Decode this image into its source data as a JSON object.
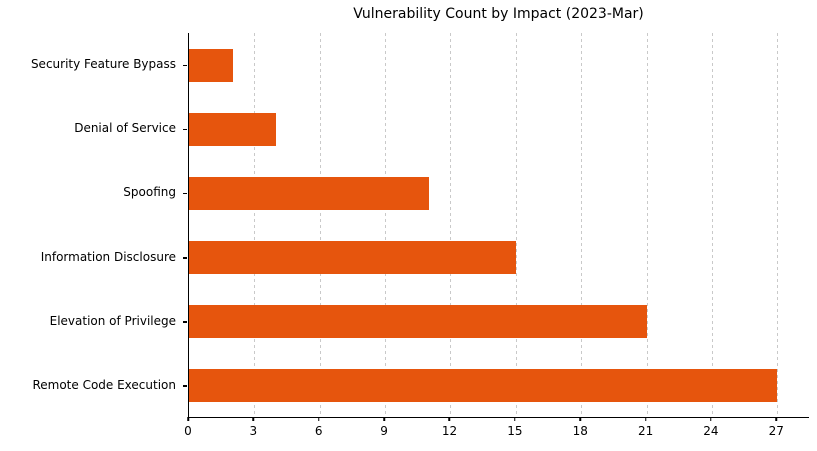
{
  "colors": {
    "background": "#ffffff",
    "bar": "#e6550d",
    "axis": "#000000",
    "grid": "#c9c9c9",
    "text": "#000000"
  },
  "chart_data": {
    "type": "bar",
    "orientation": "horizontal",
    "title": "Vulnerability Count by Impact (2023-Mar)",
    "categories": [
      "Security Feature Bypass",
      "Denial of Service",
      "Spoofing",
      "Information Disclosure",
      "Elevation of Privilege",
      "Remote Code Execution"
    ],
    "values": [
      2,
      4,
      11,
      15,
      21,
      27
    ],
    "xlabel": "",
    "ylabel": "",
    "x_ticks": [
      0,
      3,
      6,
      9,
      12,
      15,
      18,
      21,
      24,
      27
    ],
    "xlim": [
      0,
      28.5
    ],
    "grid": "vertical-dashed",
    "legend": "none",
    "bar_color": "#e6550d"
  }
}
